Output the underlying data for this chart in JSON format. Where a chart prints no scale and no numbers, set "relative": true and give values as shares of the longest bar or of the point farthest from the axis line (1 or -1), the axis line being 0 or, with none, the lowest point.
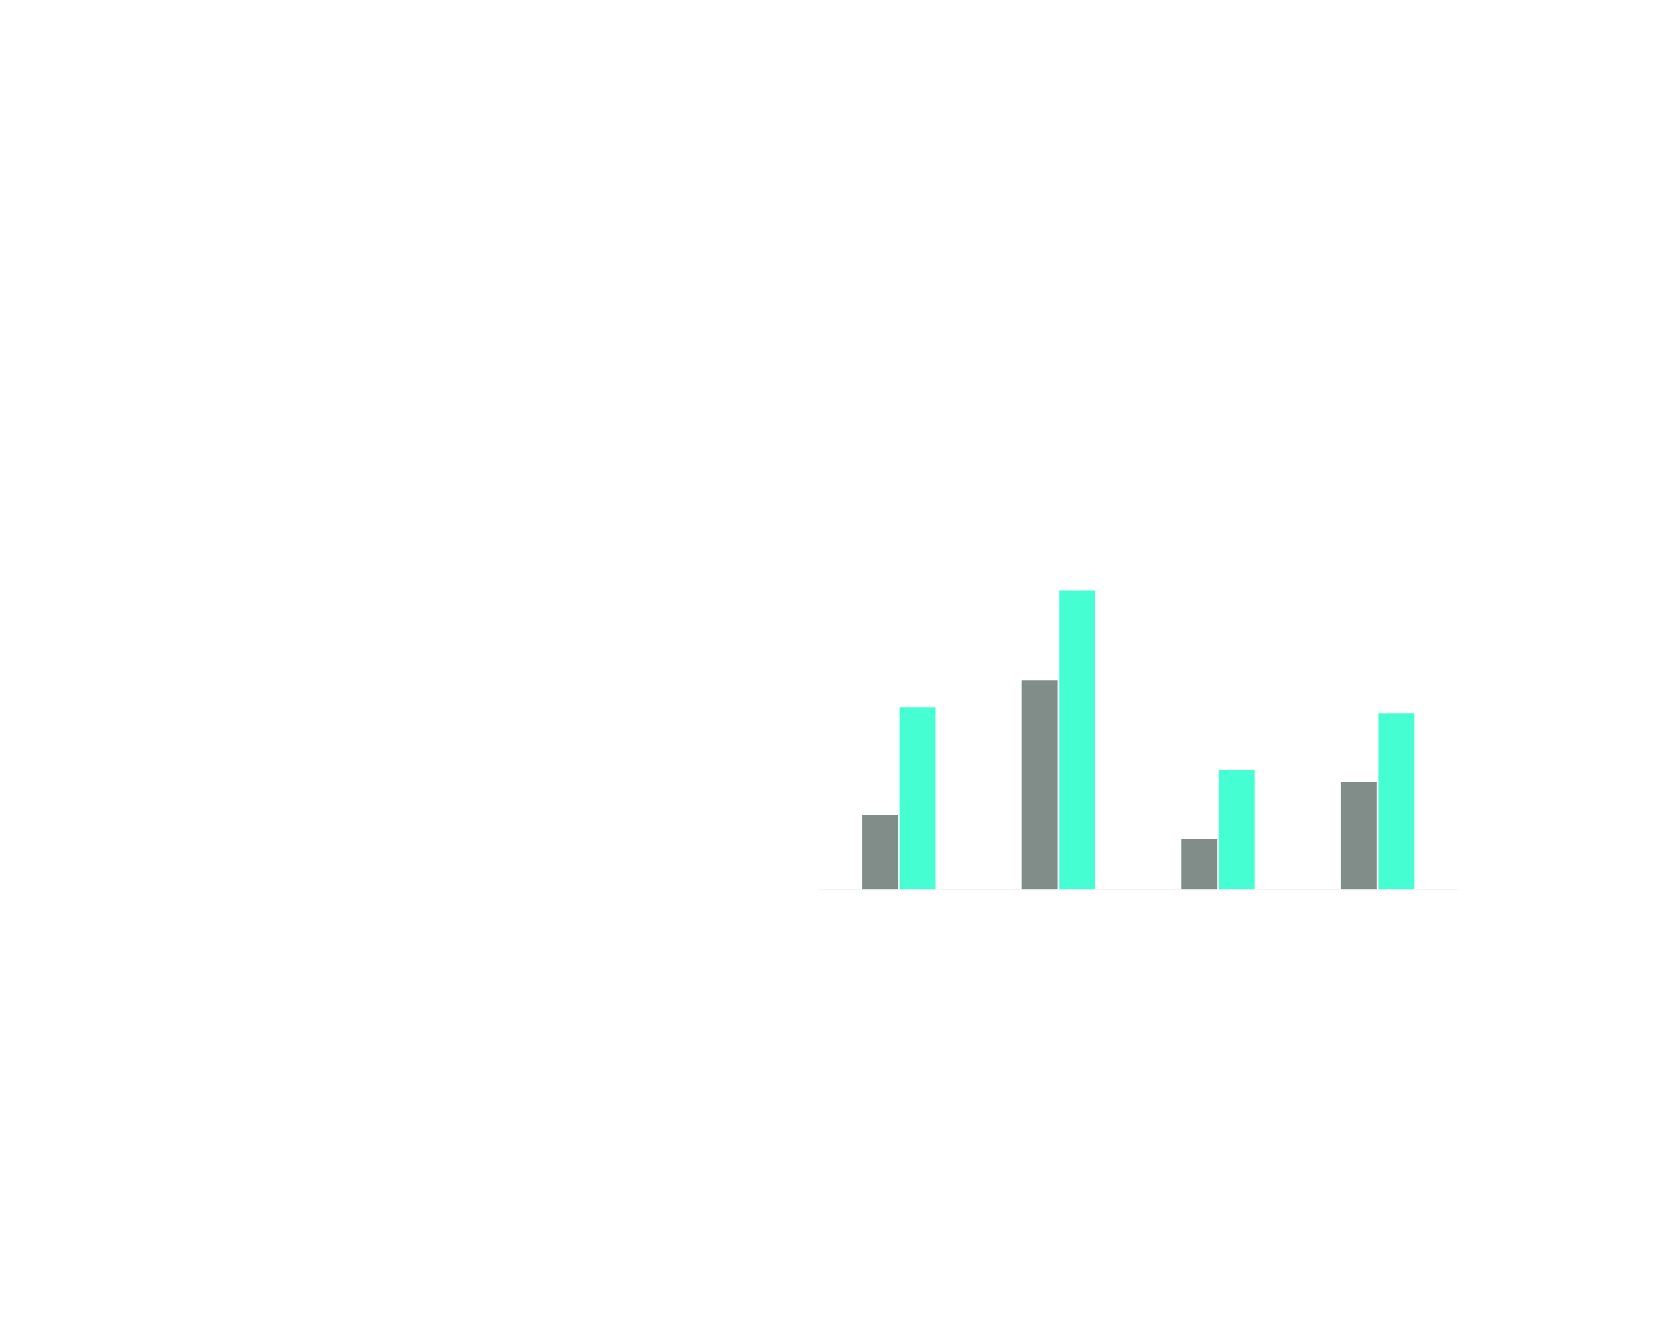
{
  "chart_data": {
    "type": "bar",
    "relative": true,
    "categories": [
      null,
      null,
      null,
      null
    ],
    "series": [
      {
        "color": "#818d89",
        "values": [
          0.25,
          0.7,
          0.17,
          0.36
        ]
      },
      {
        "color": "#45ffd2",
        "values": [
          0.61,
          1.0,
          0.4,
          0.59
        ]
      }
    ]
  }
}
